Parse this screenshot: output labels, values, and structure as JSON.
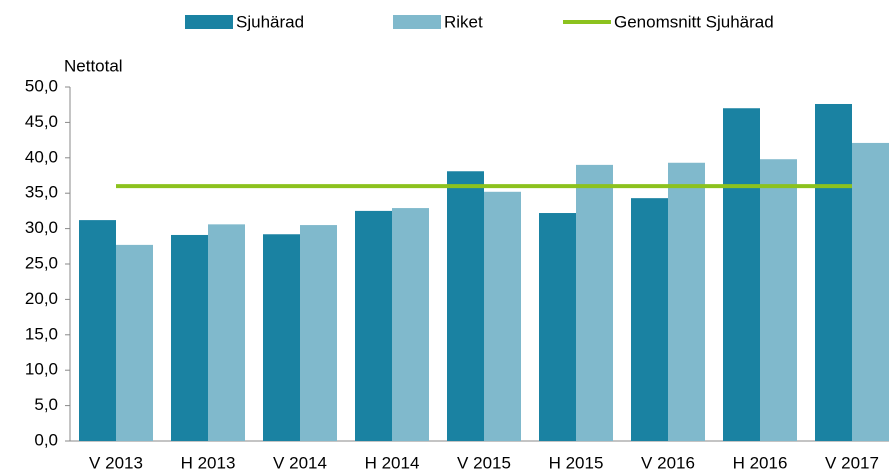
{
  "chart_data": {
    "type": "bar",
    "y_label": "Nettotal",
    "categories": [
      "V 2013",
      "H 2013",
      "V 2014",
      "H 2014",
      "V 2015",
      "H 2015",
      "V 2016",
      "H 2016",
      "V 2017"
    ],
    "series": [
      {
        "name": "Sjuhärad",
        "color": "#1a82a2",
        "values": [
          31.2,
          29.1,
          29.2,
          32.5,
          38.1,
          32.2,
          34.3,
          47.0,
          47.6
        ]
      },
      {
        "name": "Riket",
        "color": "#80b9cc",
        "values": [
          27.7,
          30.6,
          30.5,
          32.9,
          35.2,
          39.0,
          39.3,
          39.8,
          42.1
        ]
      },
      {
        "name": "Genomsnitt Sjuhärad",
        "color": "#8cc21e",
        "type": "line",
        "values": [
          36.0,
          36.0,
          36.0,
          36.0,
          36.0,
          36.0,
          36.0,
          36.0,
          36.0
        ]
      }
    ],
    "ylim": [
      0,
      50
    ],
    "yticks": [
      {
        "value": 0,
        "label": "0,0"
      },
      {
        "value": 5,
        "label": "5,0"
      },
      {
        "value": 10,
        "label": "10,0"
      },
      {
        "value": 15,
        "label": "15,0"
      },
      {
        "value": 20,
        "label": "20,0"
      },
      {
        "value": 25,
        "label": "25,0"
      },
      {
        "value": 30,
        "label": "30,0"
      },
      {
        "value": 35,
        "label": "35,0"
      },
      {
        "value": 40,
        "label": "40,0"
      },
      {
        "value": 45,
        "label": "45,0"
      },
      {
        "value": 50,
        "label": "50,0"
      }
    ],
    "legend": "top"
  }
}
